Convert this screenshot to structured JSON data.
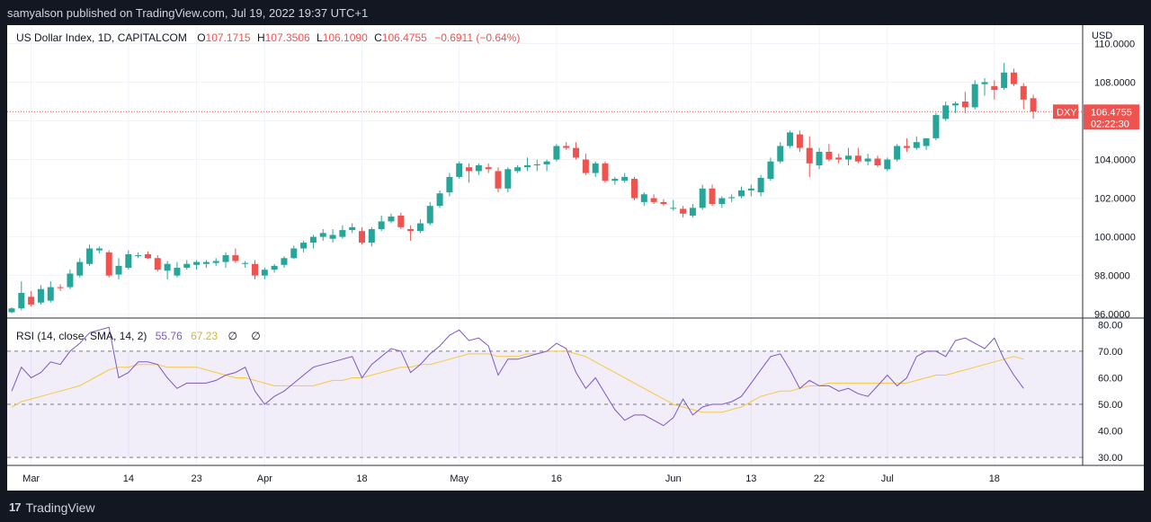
{
  "header": {
    "publish_line": "samyalson published on TradingView.com, Jul 19, 2022 19:37 UTC+1"
  },
  "footer": {
    "brand": "TradingView",
    "logo_glyph": "17"
  },
  "chart_data": [
    {
      "type": "candlestick",
      "title": "US Dollar Index, 1D, CAPITALCOM",
      "ohlc_label": {
        "o_label": "O",
        "o_value": "107.1715",
        "h_label": "H",
        "h_value": "107.3506",
        "l_label": "L",
        "l_value": "106.1090",
        "c_label": "C",
        "c_value": "106.4755",
        "change": "−0.6911 (−0.64%)"
      },
      "currency": "USD",
      "y_ticks": [
        "110.0000",
        "108.0000",
        "106.0000",
        "104.0000",
        "102.0000",
        "100.0000",
        "98.0000",
        "96.0000"
      ],
      "ylim": [
        95.8,
        110.95
      ],
      "last_price": {
        "symbol": "DXY",
        "price": "106.4755",
        "countdown": "02:22:30",
        "value": 106.4755
      },
      "x_ticks": [
        {
          "label": "Mar",
          "i": 2
        },
        {
          "label": "14",
          "i": 12
        },
        {
          "label": "23",
          "i": 19
        },
        {
          "label": "Apr",
          "i": 26
        },
        {
          "label": "18",
          "i": 36
        },
        {
          "label": "May",
          "i": 46
        },
        {
          "label": "16",
          "i": 56
        },
        {
          "label": "Jun",
          "i": 68
        },
        {
          "label": "13",
          "i": 76
        },
        {
          "label": "22",
          "i": 83
        },
        {
          "label": "Jul",
          "i": 90
        },
        {
          "label": "18",
          "i": 101
        }
      ],
      "colors": {
        "up": "#26a69a",
        "down": "#ef5350",
        "rsi": "#7e57c2",
        "rsi_ma": "#f5c842",
        "grid": "#f0f3fa"
      },
      "candles": [
        [
          96.1,
          96.35,
          96.05,
          96.3
        ],
        [
          96.3,
          97.7,
          96.2,
          97.1
        ],
        [
          96.9,
          97.2,
          96.4,
          96.5
        ],
        [
          96.6,
          97.5,
          96.5,
          97.3
        ],
        [
          96.7,
          97.7,
          96.6,
          97.4
        ],
        [
          97.4,
          97.55,
          97.2,
          97.35
        ],
        [
          97.4,
          98.3,
          97.3,
          98.1
        ],
        [
          98.0,
          98.9,
          97.9,
          98.7
        ],
        [
          98.6,
          99.6,
          98.5,
          99.4
        ],
        [
          99.3,
          99.5,
          99.15,
          99.4
        ],
        [
          99.2,
          99.3,
          97.9,
          98.0
        ],
        [
          98.05,
          98.9,
          97.8,
          98.5
        ],
        [
          98.4,
          99.3,
          98.3,
          99.1
        ],
        [
          99.0,
          99.2,
          98.9,
          99.05
        ],
        [
          99.1,
          99.25,
          98.85,
          98.9
        ],
        [
          98.9,
          99.05,
          98.2,
          98.3
        ],
        [
          98.25,
          98.75,
          97.8,
          98.6
        ],
        [
          98.0,
          98.7,
          97.9,
          98.4
        ],
        [
          98.4,
          98.8,
          98.3,
          98.6
        ],
        [
          98.55,
          98.8,
          98.3,
          98.7
        ],
        [
          98.6,
          98.8,
          98.4,
          98.7
        ],
        [
          98.65,
          98.9,
          98.5,
          98.75
        ],
        [
          98.7,
          99.2,
          98.4,
          99.05
        ],
        [
          99.05,
          99.4,
          98.65,
          98.75
        ],
        [
          98.6,
          98.75,
          98.4,
          98.65
        ],
        [
          98.6,
          98.8,
          97.8,
          98.0
        ],
        [
          98.0,
          98.4,
          97.8,
          98.3
        ],
        [
          98.3,
          98.6,
          98.15,
          98.5
        ],
        [
          98.55,
          99.0,
          98.4,
          98.9
        ],
        [
          98.9,
          99.55,
          98.85,
          99.4
        ],
        [
          99.4,
          99.8,
          99.2,
          99.7
        ],
        [
          99.7,
          100.1,
          99.4,
          100.0
        ],
        [
          100.0,
          100.4,
          99.8,
          100.2
        ],
        [
          99.9,
          100.4,
          99.7,
          100.1
        ],
        [
          100.0,
          100.6,
          99.9,
          100.35
        ],
        [
          100.35,
          100.7,
          100.2,
          100.5
        ],
        [
          100.3,
          100.5,
          99.6,
          99.7
        ],
        [
          99.7,
          100.5,
          99.5,
          100.4
        ],
        [
          100.4,
          101.1,
          100.3,
          100.8
        ],
        [
          100.8,
          101.2,
          100.7,
          101.05
        ],
        [
          101.1,
          101.25,
          100.4,
          100.5
        ],
        [
          100.4,
          100.6,
          99.8,
          100.3
        ],
        [
          100.3,
          100.9,
          100.2,
          100.7
        ],
        [
          100.7,
          101.8,
          100.6,
          101.6
        ],
        [
          101.6,
          102.4,
          101.5,
          102.25
        ],
        [
          102.3,
          103.3,
          102.1,
          103.1
        ],
        [
          103.1,
          103.9,
          103.0,
          103.8
        ],
        [
          103.6,
          103.8,
          102.8,
          103.4
        ],
        [
          103.4,
          103.8,
          103.2,
          103.7
        ],
        [
          103.6,
          103.8,
          103.3,
          103.5
        ],
        [
          103.4,
          103.6,
          102.3,
          102.5
        ],
        [
          102.5,
          103.6,
          102.3,
          103.5
        ],
        [
          103.4,
          103.7,
          103.3,
          103.6
        ],
        [
          103.6,
          104.1,
          103.4,
          103.7
        ],
        [
          103.7,
          104.0,
          103.4,
          103.75
        ],
        [
          103.75,
          104.0,
          103.4,
          103.9
        ],
        [
          104.0,
          104.8,
          103.9,
          104.7
        ],
        [
          104.7,
          104.9,
          104.5,
          104.6
        ],
        [
          104.6,
          104.9,
          104.0,
          104.1
        ],
        [
          104.0,
          104.3,
          103.2,
          103.3
        ],
        [
          103.3,
          103.9,
          103.1,
          103.8
        ],
        [
          103.8,
          103.9,
          102.8,
          102.9
        ],
        [
          102.9,
          103.1,
          102.7,
          103.0
        ],
        [
          102.9,
          103.3,
          102.8,
          103.1
        ],
        [
          103.0,
          103.1,
          101.9,
          102.0
        ],
        [
          101.8,
          102.3,
          101.6,
          102.2
        ],
        [
          102.0,
          102.2,
          101.7,
          101.8
        ],
        [
          101.8,
          101.95,
          101.6,
          101.7
        ],
        [
          101.5,
          101.9,
          101.35,
          101.5
        ],
        [
          101.45,
          101.6,
          101.0,
          101.2
        ],
        [
          101.1,
          101.7,
          101.0,
          101.5
        ],
        [
          101.5,
          102.7,
          101.4,
          102.5
        ],
        [
          102.5,
          102.7,
          101.6,
          101.7
        ],
        [
          101.7,
          102.1,
          101.5,
          102.0
        ],
        [
          102.0,
          102.2,
          101.8,
          102.05
        ],
        [
          102.1,
          102.6,
          102.0,
          102.4
        ],
        [
          102.4,
          102.7,
          102.1,
          102.5
        ],
        [
          102.3,
          103.2,
          102.1,
          103.05
        ],
        [
          103.0,
          104.1,
          102.9,
          103.9
        ],
        [
          103.9,
          104.9,
          103.8,
          104.7
        ],
        [
          104.7,
          105.5,
          104.6,
          105.4
        ],
        [
          105.3,
          105.5,
          104.4,
          104.6
        ],
        [
          104.6,
          105.2,
          103.1,
          103.8
        ],
        [
          103.7,
          104.6,
          103.5,
          104.4
        ],
        [
          104.4,
          104.8,
          103.9,
          104.0
        ],
        [
          104.1,
          104.3,
          103.8,
          104.0
        ],
        [
          104.0,
          104.6,
          103.7,
          104.2
        ],
        [
          104.2,
          104.6,
          103.8,
          103.9
        ],
        [
          103.9,
          104.3,
          103.7,
          104.05
        ],
        [
          104.05,
          104.2,
          103.6,
          103.7
        ],
        [
          103.5,
          104.1,
          103.4,
          104.0
        ],
        [
          104.0,
          104.8,
          103.9,
          104.7
        ],
        [
          104.7,
          105.1,
          104.4,
          104.6
        ],
        [
          104.6,
          105.2,
          104.5,
          104.9
        ],
        [
          104.7,
          105.0,
          104.5,
          105.1
        ],
        [
          105.1,
          106.4,
          105.0,
          106.3
        ],
        [
          106.1,
          107.0,
          106.0,
          106.8
        ],
        [
          106.8,
          107.0,
          106.4,
          106.9
        ],
        [
          107.0,
          107.5,
          106.4,
          106.7
        ],
        [
          106.7,
          108.1,
          106.6,
          107.9
        ],
        [
          107.9,
          108.2,
          107.3,
          108.0
        ],
        [
          107.8,
          108.1,
          107.1,
          107.6
        ],
        [
          107.7,
          109.0,
          107.6,
          108.5
        ],
        [
          108.5,
          108.7,
          107.8,
          107.9
        ],
        [
          107.8,
          107.95,
          106.6,
          107.1
        ],
        [
          107.17,
          107.35,
          106.11,
          106.48
        ]
      ]
    },
    {
      "type": "line",
      "title": "RSI",
      "legend_text": "RSI (14, close, SMA, 14, 2)",
      "rsi_value": "55.76",
      "ma_value": "67.23",
      "na1": "∅",
      "na2": "∅",
      "y_ticks": [
        "80.00",
        "70.00",
        "60.00",
        "50.00",
        "40.00",
        "30.00"
      ],
      "ylim": [
        27,
        82.5
      ],
      "band": [
        30,
        70
      ],
      "mid": 50,
      "series": [
        {
          "values": [
            55,
            64,
            60,
            62,
            66,
            65,
            70,
            73,
            77,
            78,
            79,
            60,
            62,
            66,
            66,
            65,
            60,
            56,
            58,
            58,
            58,
            59,
            61,
            62,
            64,
            55,
            50,
            53,
            55,
            58,
            61,
            64,
            65,
            66,
            67,
            68,
            60,
            65,
            68,
            71,
            70,
            62,
            65,
            69,
            72,
            76,
            78,
            74,
            75,
            72,
            61,
            67,
            67,
            68,
            69,
            70,
            73,
            71,
            62,
            56,
            60,
            54,
            48,
            44,
            46,
            46,
            44,
            42,
            45,
            52,
            46,
            49,
            50,
            50,
            51,
            53,
            58,
            63,
            68,
            69,
            63,
            56,
            59,
            57,
            57,
            55,
            56,
            54,
            53,
            57,
            61,
            57,
            60,
            68,
            70,
            70,
            68,
            74,
            75,
            73,
            71,
            75,
            67,
            61,
            56
          ]
        },
        {
          "values": [
            49,
            51,
            52,
            53,
            54,
            55,
            56,
            57,
            59,
            61,
            63,
            64,
            64,
            65,
            65,
            65,
            64,
            64,
            64,
            64,
            63,
            62,
            61,
            60,
            60,
            59,
            58,
            57,
            57,
            57,
            57,
            57,
            58,
            59,
            59,
            60,
            60,
            61,
            62,
            63,
            64,
            64,
            65,
            65,
            66,
            67,
            68,
            69,
            69,
            69,
            68,
            68,
            68,
            69,
            69,
            70,
            70,
            70,
            69,
            68,
            66,
            64,
            62,
            60,
            58,
            56,
            54,
            52,
            50,
            49,
            48,
            47,
            47,
            47,
            48,
            49,
            51,
            53,
            54,
            55,
            55,
            56,
            57,
            57,
            58,
            58,
            58,
            58,
            58,
            58,
            58,
            58,
            58,
            59,
            60,
            61,
            61,
            62,
            63,
            64,
            65,
            66,
            67,
            68,
            67
          ]
        }
      ]
    }
  ]
}
